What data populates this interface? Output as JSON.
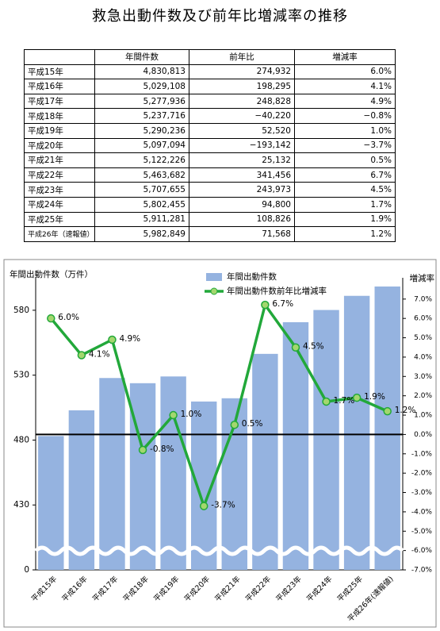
{
  "title": "救急出動件数及び前年比増減率の推移",
  "table": {
    "header": [
      "年間件数",
      "前年比",
      "増減率"
    ],
    "rows": [
      [
        "平成15年",
        "4,830,813",
        "274,932",
        "6.0%"
      ],
      [
        "平成16年",
        "5,029,108",
        "198,295",
        "4.1%"
      ],
      [
        "平成17年",
        "5,277,936",
        "248,828",
        "4.9%"
      ],
      [
        "平成18年",
        "5,237,716",
        "−40,220",
        "−0.8%"
      ],
      [
        "平成19年",
        "5,290,236",
        "52,520",
        "1.0%"
      ],
      [
        "平成20年",
        "5,097,094",
        "−193,142",
        "−3.7%"
      ],
      [
        "平成21年",
        "5,122,226",
        "25,132",
        "0.5%"
      ],
      [
        "平成22年",
        "5,463,682",
        "341,456",
        "6.7%"
      ],
      [
        "平成23年",
        "5,707,655",
        "243,973",
        "4.5%"
      ],
      [
        "平成24年",
        "5,802,455",
        "94,800",
        "1.7%"
      ],
      [
        "平成25年",
        "5,911,281",
        "108,826",
        "1.9%"
      ],
      [
        "平成26年（速報値）",
        "5,982,849",
        "71,568",
        "1.2%"
      ]
    ]
  },
  "chart_data": {
    "type": "bar_line",
    "ylabel": "年間出動件数（万件）",
    "y2label": "増減率",
    "categories": [
      "平成15年",
      "平成16年",
      "平成17年",
      "平成18年",
      "平成19年",
      "平成20年",
      "平成21年",
      "平成22年",
      "平成23年",
      "平成24年",
      "平成25年",
      "平成26年(速報値)"
    ],
    "series": [
      {
        "name": "年間出動件数",
        "type": "bar",
        "color": "#95b3e0",
        "values": [
          483.1,
          502.9,
          527.8,
          523.8,
          529.0,
          509.7,
          512.2,
          546.4,
          570.8,
          580.2,
          591.1,
          598.3
        ]
      },
      {
        "name": "年間出動件数前年比増減率",
        "type": "line",
        "axis": "y2",
        "color": "#22a83a",
        "marker_color": "#a3d76e",
        "values": [
          6.0,
          4.1,
          4.9,
          -0.8,
          1.0,
          -3.7,
          0.5,
          6.7,
          4.5,
          1.7,
          1.9,
          1.2
        ],
        "value_labels": [
          "6.0%",
          "4.1%",
          "4.9%",
          "-0.8%",
          "1.0%",
          "-3.7%",
          "0.5%",
          "6.7%",
          "4.5%",
          "1.7%",
          "1.9%",
          "1.2%"
        ]
      }
    ],
    "ylim": [
      0,
      605
    ],
    "yticks": [
      0,
      430,
      480,
      530,
      580
    ],
    "axis_break": true,
    "y2lim": [
      -7.0,
      8.1
    ],
    "y2ticks": [
      {
        "value": -7,
        "label": "-7.0%"
      },
      {
        "value": -6,
        "label": "-6.0%"
      },
      {
        "value": -5,
        "label": "-5.0%"
      },
      {
        "value": -4,
        "label": "-4.0%"
      },
      {
        "value": -3,
        "label": "-3.0%"
      },
      {
        "value": -2,
        "label": "-2.0%"
      },
      {
        "value": -1,
        "label": "-1.0%"
      },
      {
        "value": 0,
        "label": "0.0%"
      },
      {
        "value": 1,
        "label": "1.0%"
      },
      {
        "value": 2,
        "label": "2.0%"
      },
      {
        "value": 3,
        "label": "3.0%"
      },
      {
        "value": 4,
        "label": "4.0%"
      },
      {
        "value": 5,
        "label": "5.0%"
      },
      {
        "value": 6,
        "label": "6.0%"
      },
      {
        "value": 7,
        "label": "7.0%"
      }
    ],
    "zero_line": true
  }
}
